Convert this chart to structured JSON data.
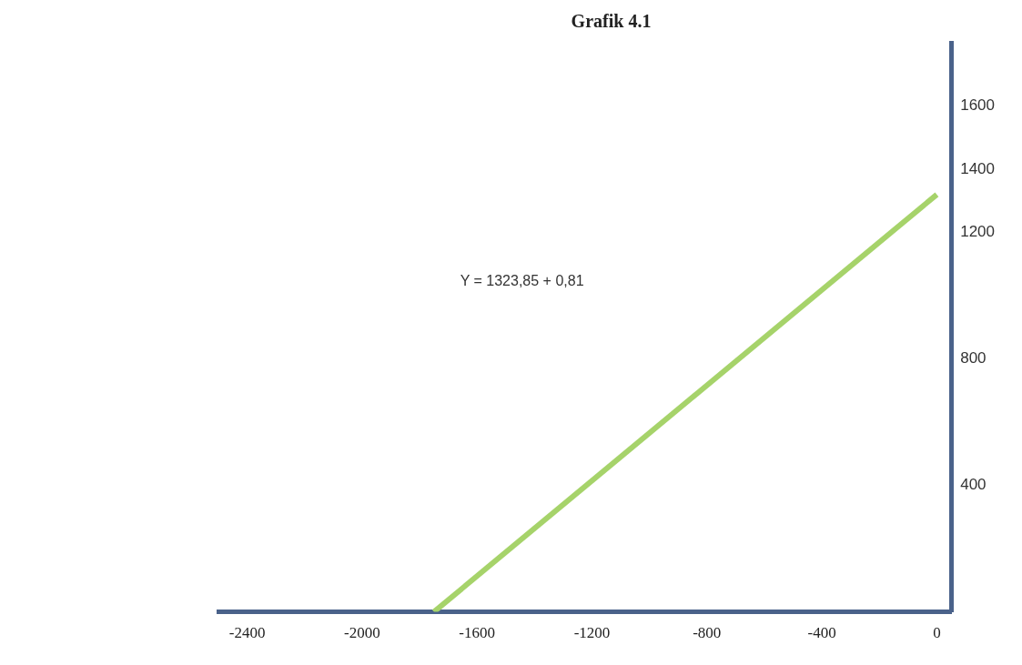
{
  "chart_data": {
    "type": "line",
    "title": "Grafik 4.1",
    "x": [
      -1750,
      0
    ],
    "series": [
      {
        "color": "#a6d36a",
        "values": [
          0,
          1320
        ]
      }
    ],
    "xlim": [
      -2500,
      50
    ],
    "xticks": [
      -2400,
      -2000,
      -1600,
      -1200,
      -800,
      -400,
      0
    ],
    "ylim": [
      0,
      1800
    ],
    "yticks": [
      400,
      800,
      1200,
      1400,
      1600
    ],
    "annotations": [
      "Y = 1323,85 + 0,81"
    ],
    "grid": false,
    "legend": false,
    "marker": "none"
  }
}
